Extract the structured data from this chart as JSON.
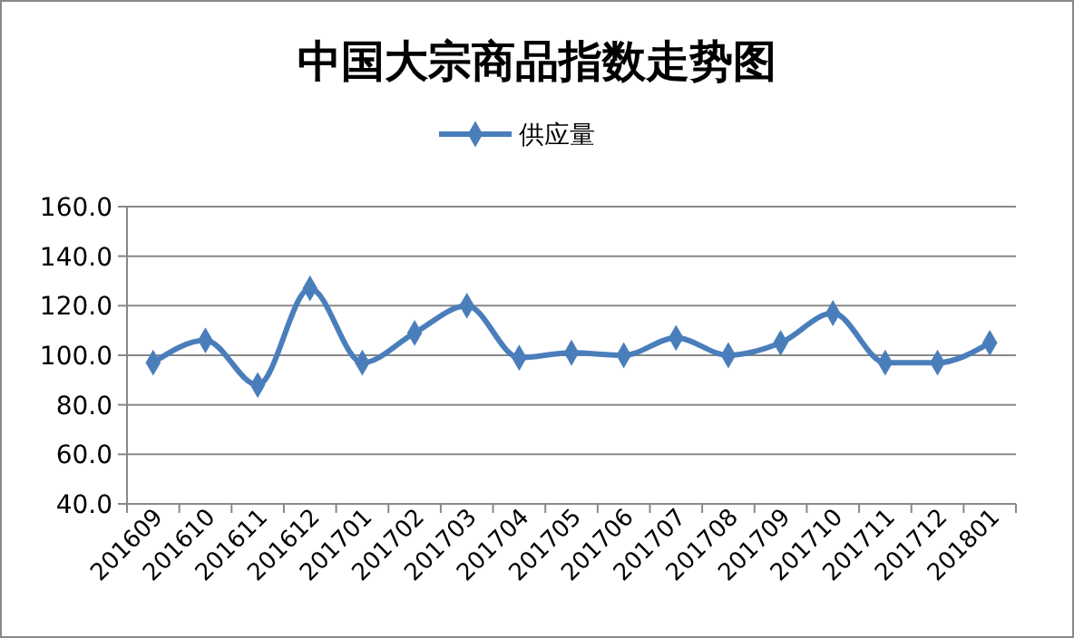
{
  "chart_data": {
    "type": "line",
    "title": "中国大宗商品指数走势图",
    "categories": [
      "201609",
      "201610",
      "201611",
      "201612",
      "201701",
      "201702",
      "201703",
      "201704",
      "201705",
      "201706",
      "201707",
      "201708",
      "201709",
      "201710",
      "201711",
      "201712",
      "201801"
    ],
    "series": [
      {
        "name": "供应量",
        "color": "#4a7ebb",
        "values": [
          97,
          106,
          88,
          127,
          97,
          109,
          120,
          99,
          101,
          100,
          107,
          100,
          105,
          117,
          97,
          97,
          105
        ]
      }
    ],
    "ylim": [
      40,
      160
    ],
    "yticks": [
      {
        "value": 40,
        "label": "40.0"
      },
      {
        "value": 60,
        "label": "60.0"
      },
      {
        "value": 80,
        "label": "80.0"
      },
      {
        "value": 100,
        "label": "100.0"
      },
      {
        "value": 120,
        "label": "120.0"
      },
      {
        "value": 140,
        "label": "140.0"
      },
      {
        "value": 160,
        "label": "160.0"
      }
    ],
    "grid": "y",
    "legend": "top",
    "marker": "diamond",
    "line_style": "solid"
  }
}
